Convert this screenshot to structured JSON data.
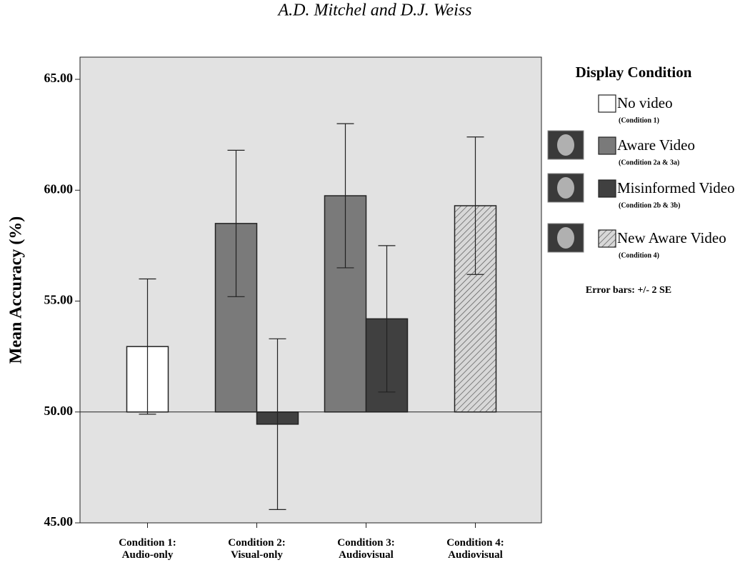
{
  "header": {
    "authors": "A.D. Mitchel and D.J. Weiss"
  },
  "chart_data": {
    "type": "bar",
    "ylabel": "Mean Accuracy (%)",
    "categories": [
      "Condition 1:\nAudio-only",
      "Condition 2:\nVisual-only",
      "Condition 3:\nAudiovisual",
      "Condition 4:\nAudiovisual"
    ],
    "ylim": [
      45,
      66
    ],
    "yticks": [
      {
        "value": 45,
        "label": "45.00"
      },
      {
        "value": 50,
        "label": "50.00"
      },
      {
        "value": 55,
        "label": "55.00"
      },
      {
        "value": 60,
        "label": "60.00"
      },
      {
        "value": 65,
        "label": "65.00"
      }
    ],
    "baseline": 50,
    "legend_title": "Display Condition",
    "error_note": "Error bars: +/- 2 SE",
    "series": [
      {
        "name": "No video",
        "note": "(Condition 1)",
        "color": "#ffffff",
        "values": [
          52.95,
          null,
          null,
          null
        ],
        "errors": [
          3.05,
          null,
          null,
          null
        ]
      },
      {
        "name": "Aware Video",
        "note": "(Condition 2a & 3a)",
        "color": "#7a7a7a",
        "values": [
          null,
          58.5,
          59.75,
          null
        ],
        "errors": [
          null,
          3.3,
          3.25,
          null
        ]
      },
      {
        "name": "Misinformed Video",
        "note": "(Condition 2b & 3b)",
        "color": "#404040",
        "values": [
          null,
          49.45,
          54.2,
          null
        ],
        "errors": [
          null,
          3.85,
          3.3,
          null
        ]
      },
      {
        "name": "New Aware Video",
        "note": "(Condition 4)",
        "color": "#c8c8c8",
        "hatch": true,
        "values": [
          null,
          null,
          null,
          59.3
        ],
        "errors": [
          null,
          null,
          null,
          3.1
        ]
      }
    ]
  }
}
